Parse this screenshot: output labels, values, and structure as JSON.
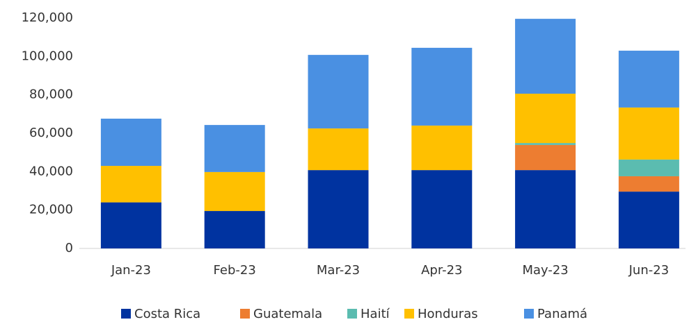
{
  "chart_data": {
    "type": "stacked_bar",
    "categories": [
      "Jan-23",
      "Feb-23",
      "Mar-23",
      "Apr-23",
      "May-23",
      "Jun-23"
    ],
    "series": [
      {
        "name": "Costa Rica",
        "color": "#0033a0",
        "values": [
          24000,
          19500,
          40800,
          40800,
          40800,
          29600
        ]
      },
      {
        "name": "Guatemala",
        "color": "#ed7d31",
        "values": [
          0,
          0,
          0,
          0,
          13100,
          8000
        ]
      },
      {
        "name": "Haití",
        "color": "#5bbcb0",
        "values": [
          0,
          0,
          0,
          0,
          1000,
          8700
        ]
      },
      {
        "name": "Honduras",
        "color": "#ffc000",
        "values": [
          19000,
          20300,
          21700,
          23200,
          25700,
          27100
        ]
      },
      {
        "name": "Panamá",
        "color": "#4a90e2",
        "values": [
          24600,
          24500,
          38300,
          40500,
          39000,
          29600
        ]
      }
    ],
    "ylim": [
      0,
      120000
    ],
    "yticks": [
      0,
      {
        "value": 20000,
        "label": "20,000"
      },
      {
        "value": 40000,
        "label": "40,000"
      },
      {
        "value": 60000,
        "label": "60,000"
      },
      {
        "value": 80000,
        "label": "80,000"
      },
      {
        "value": 100000,
        "label": "100,000"
      },
      {
        "value": 120000,
        "label": "120,000"
      }
    ],
    "grid": false,
    "legend": "bottom"
  }
}
